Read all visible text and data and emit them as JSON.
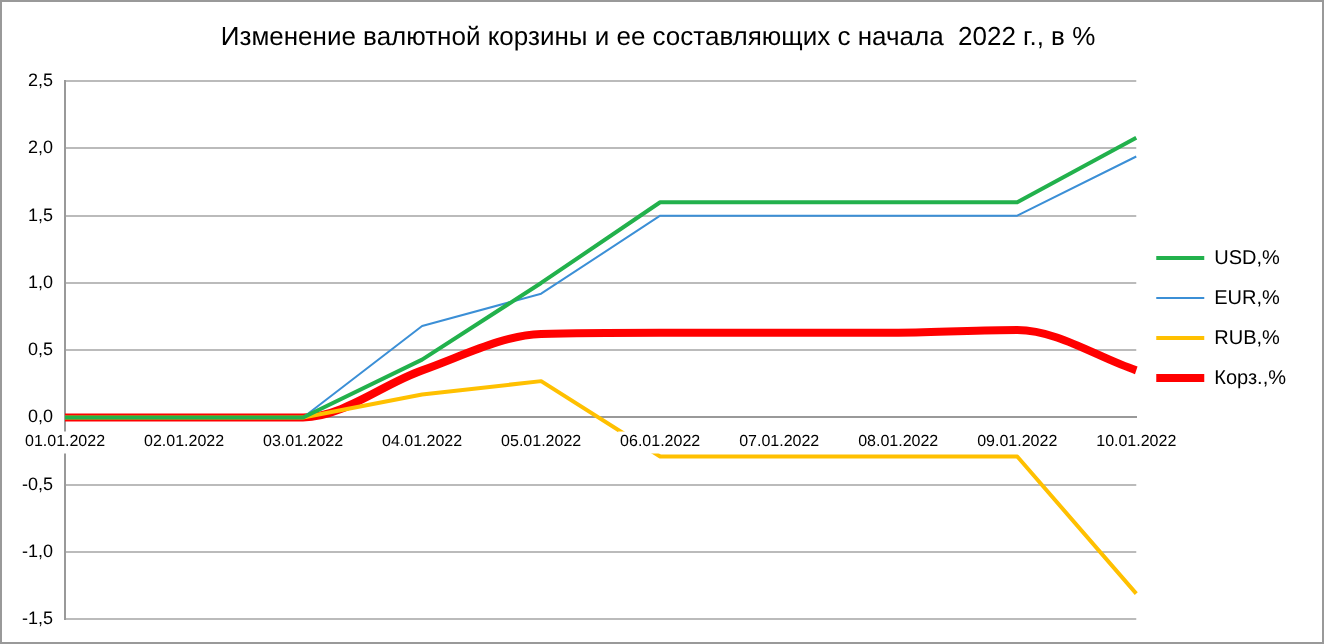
{
  "chart_data": {
    "type": "line",
    "title": "Изменение валютной корзины и ее составляющих с начала  2022 г., в %",
    "categories": [
      "01.01.2022",
      "02.01.2022",
      "03.01.2022",
      "04.01.2022",
      "05.01.2022",
      "06.01.2022",
      "07.01.2022",
      "08.01.2022",
      "09.01.2022",
      "10.01.2022"
    ],
    "series": [
      {
        "name": "USD,%",
        "color": "#22b14c",
        "values": [
          0,
          0,
          0,
          0.43,
          1.0,
          1.6,
          1.6,
          1.6,
          1.6,
          2.08
        ]
      },
      {
        "name": "EUR,%",
        "color": "#3b8fd6",
        "values": [
          0,
          0,
          0,
          0.68,
          0.92,
          1.5,
          1.5,
          1.5,
          1.5,
          1.94
        ]
      },
      {
        "name": "RUB,%",
        "color": "#ffc000",
        "values": [
          0,
          0,
          0,
          0.17,
          0.27,
          -0.29,
          -0.29,
          -0.29,
          -0.29,
          -1.31
        ]
      },
      {
        "name": "Корз.,%",
        "color": "#ff0000",
        "values": [
          0,
          0,
          0,
          0.35,
          0.62,
          0.63,
          0.63,
          0.63,
          0.65,
          0.35
        ]
      }
    ],
    "ylim": [
      -1.5,
      2.5
    ],
    "yticks": [
      {
        "value": -1.5,
        "label": "-1,5"
      },
      {
        "value": -1.0,
        "label": "-1,0"
      },
      {
        "value": -0.5,
        "label": "-0,5"
      },
      {
        "value": 0,
        "label": "0,0"
      },
      {
        "value": 0.5,
        "label": "0,5"
      },
      {
        "value": 1.0,
        "label": "1,0"
      },
      {
        "value": 1.5,
        "label": "1,5"
      },
      {
        "value": 2.0,
        "label": "2,0"
      },
      {
        "value": 2.5,
        "label": "2,5"
      }
    ],
    "grid": "y",
    "legend": "right",
    "marker": "none"
  }
}
